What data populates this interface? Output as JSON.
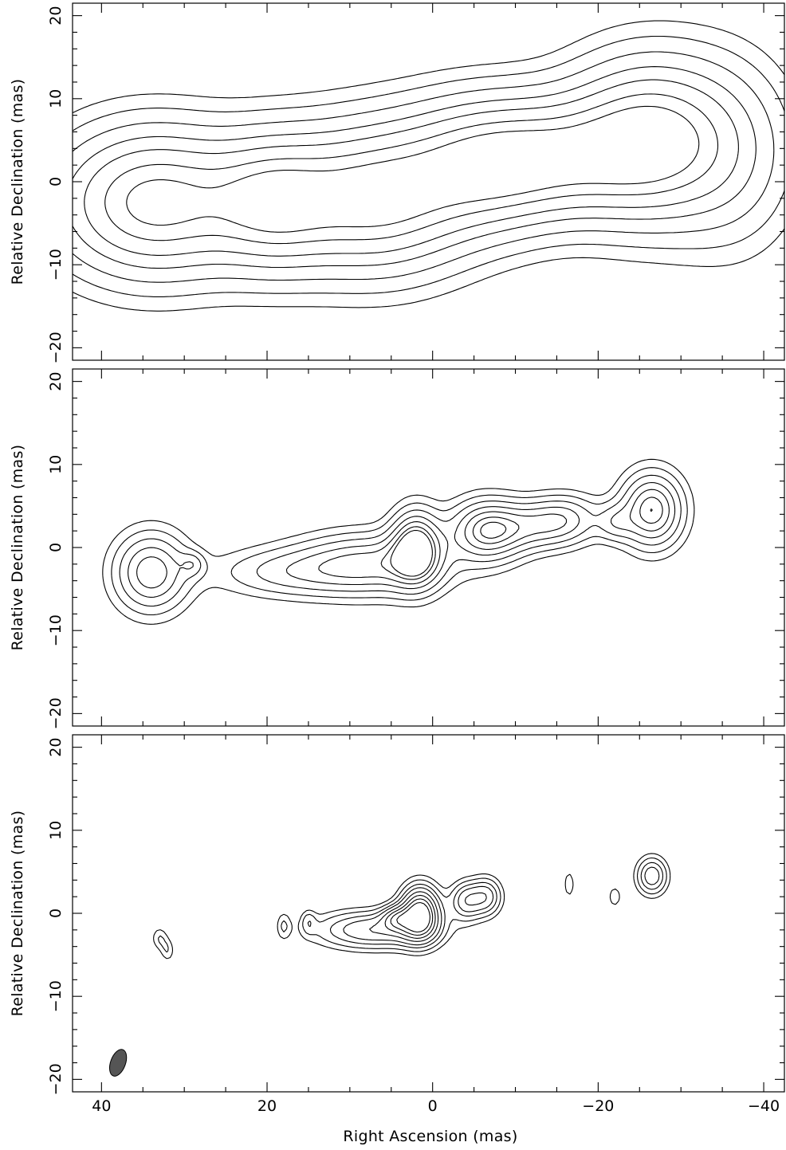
{
  "chart_data": [
    {
      "type": "contour",
      "panel": "top",
      "xlabel": "",
      "ylabel": "Relative Declination  (mas)",
      "xlim": [
        43.5,
        -42.5
      ],
      "ylim": [
        -21.5,
        21.5
      ],
      "xticks": [
        40,
        20,
        0,
        -20,
        -40
      ],
      "yticks": [
        20,
        10,
        0,
        -10,
        -20
      ],
      "ytick_labels": [
        "20",
        "10",
        "0",
        "−10",
        "−20"
      ],
      "show_xtick_labels": false,
      "contour_sets": [
        {
          "components": [
            {
              "x": 33.5,
              "y": -2.5,
              "sx": 7.5,
              "sy": 5.5,
              "peak": 1.0
            },
            {
              "x": 19.5,
              "y": -2.5,
              "sx": 5.0,
              "sy": 5.0,
              "peak": 0.7
            },
            {
              "x": 7.5,
              "y": -2.0,
              "sx": 7.5,
              "sy": 5.5,
              "peak": 1.0
            },
            {
              "x": -6.5,
              "y": 2.0,
              "sx": 7.0,
              "sy": 5.0,
              "peak": 0.85
            },
            {
              "x": -16.0,
              "y": 3.0,
              "sx": 7.0,
              "sy": 4.5,
              "peak": 0.55
            },
            {
              "x": -26.5,
              "y": 5.0,
              "sx": 6.5,
              "sy": 6.0,
              "peak": 1.0
            },
            {
              "x": -36.0,
              "y": 3.0,
              "sx": 5.0,
              "sy": 7.0,
              "peak": 0.25
            }
          ],
          "levels": [
            0.06,
            0.12,
            0.22,
            0.36,
            0.52,
            0.72,
            0.9
          ]
        }
      ]
    },
    {
      "type": "contour",
      "panel": "middle",
      "xlabel": "",
      "ylabel": "Relative Declination  (mas)",
      "xlim": [
        43.5,
        -42.5
      ],
      "ylim": [
        -21.5,
        21.5
      ],
      "xticks": [
        40,
        20,
        0,
        -20,
        -40
      ],
      "yticks": [
        20,
        10,
        0,
        -10,
        -20
      ],
      "ytick_labels": [
        "20",
        "10",
        "0",
        "−10",
        "−20"
      ],
      "show_xtick_labels": false,
      "contour_sets": [
        {
          "components": [
            {
              "x": 34.0,
              "y": -3.0,
              "sx": 3.0,
              "sy": 3.2,
              "peak": 1.0
            },
            {
              "x": 29.0,
              "y": -2.0,
              "sx": 1.0,
              "sy": 1.0,
              "peak": 0.35
            },
            {
              "x": 18.0,
              "y": -3.0,
              "sx": 6.0,
              "sy": 2.0,
              "peak": 0.45
            },
            {
              "x": 7.5,
              "y": -2.0,
              "sx": 6.0,
              "sy": 2.5,
              "peak": 0.9
            },
            {
              "x": 2.0,
              "y": 0.0,
              "sx": 2.0,
              "sy": 3.0,
              "peak": 1.3
            },
            {
              "x": -6.5,
              "y": 2.0,
              "sx": 3.0,
              "sy": 2.5,
              "peak": 1.1
            },
            {
              "x": -12.0,
              "y": 2.5,
              "sx": 3.5,
              "sy": 2.0,
              "peak": 0.55
            },
            {
              "x": -16.0,
              "y": 3.5,
              "sx": 3.0,
              "sy": 2.0,
              "peak": 0.6
            },
            {
              "x": -26.5,
              "y": 4.5,
              "sx": 2.5,
              "sy": 3.0,
              "peak": 1.2
            },
            {
              "x": -22.0,
              "y": 3.0,
              "sx": 1.5,
              "sy": 1.5,
              "peak": 0.4
            }
          ],
          "levels": [
            0.15,
            0.28,
            0.45,
            0.65,
            0.85,
            1.05,
            1.2
          ]
        }
      ]
    },
    {
      "type": "contour",
      "panel": "bottom",
      "xlabel": "Right Ascension  (mas)",
      "ylabel": "Relative Declination  (mas)",
      "xlim": [
        43.5,
        -42.5
      ],
      "ylim": [
        -21.5,
        21.5
      ],
      "xticks": [
        40,
        20,
        0,
        -20,
        -40
      ],
      "xtick_labels": [
        "40",
        "20",
        "0",
        "−20",
        "−40"
      ],
      "yticks": [
        20,
        10,
        0,
        -10,
        -20
      ],
      "ytick_labels": [
        "20",
        "10",
        "0",
        "−10",
        "−20"
      ],
      "show_xtick_labels": true,
      "contour_sets": [
        {
          "components": [
            {
              "x": 7.0,
              "y": -2.0,
              "sx": 5.0,
              "sy": 1.6,
              "peak": 0.8
            },
            {
              "x": 1.5,
              "y": 0.0,
              "sx": 1.6,
              "sy": 2.2,
              "peak": 1.6
            },
            {
              "x": 4.5,
              "y": -0.5,
              "sx": 1.2,
              "sy": 1.0,
              "peak": 0.6
            },
            {
              "x": -4.0,
              "y": 1.5,
              "sx": 1.3,
              "sy": 1.6,
              "peak": 0.7
            },
            {
              "x": -6.5,
              "y": 2.0,
              "sx": 1.3,
              "sy": 1.6,
              "peak": 0.7
            },
            {
              "x": -26.5,
              "y": 4.5,
              "sx": 1.3,
              "sy": 1.6,
              "peak": 0.75
            },
            {
              "x": 33.0,
              "y": -3.0,
              "sx": 0.7,
              "sy": 1.0,
              "peak": 0.3
            },
            {
              "x": 32.0,
              "y": -4.5,
              "sx": 0.6,
              "sy": 1.0,
              "peak": 0.28
            },
            {
              "x": 18.0,
              "y": -1.5,
              "sx": 0.6,
              "sy": 1.2,
              "peak": 0.28
            },
            {
              "x": 15.0,
              "y": -1.0,
              "sx": 0.6,
              "sy": 1.0,
              "peak": 0.28
            },
            {
              "x": -16.5,
              "y": 3.5,
              "sx": 0.5,
              "sy": 1.3,
              "peak": 0.28
            },
            {
              "x": -22.0,
              "y": 2.0,
              "sx": 0.6,
              "sy": 1.0,
              "peak": 0.28
            }
          ],
          "levels": [
            0.18,
            0.3,
            0.45,
            0.6,
            0.8,
            1.0,
            1.2,
            1.4
          ]
        }
      ],
      "beam": {
        "x": 38.0,
        "y": -18.0,
        "major": 1.6,
        "minor": 0.75,
        "pa_deg": 20
      }
    }
  ]
}
